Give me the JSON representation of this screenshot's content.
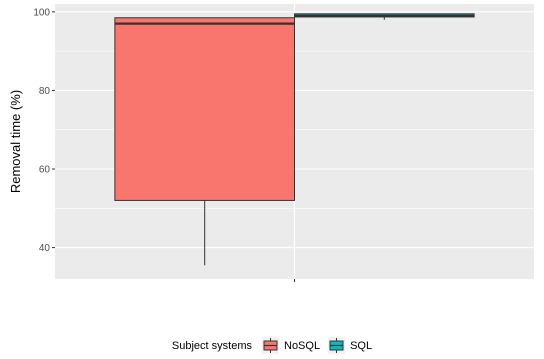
{
  "chart_data": {
    "type": "boxplot",
    "ylabel": "Removal time (%)",
    "xlabel": "",
    "ylim": [
      32,
      102
    ],
    "yticks": [
      40,
      60,
      80,
      100
    ],
    "grid": true,
    "legend_position": "bottom",
    "legend_title": "Subject systems",
    "groups": [
      {
        "name": "NoSQL",
        "color": "#F8766D",
        "min": 35.5,
        "q1": 52,
        "median": 97,
        "q3": 98.5,
        "max": 98.5
      },
      {
        "name": "SQL",
        "color": "#00BFC4",
        "min": 98,
        "q1": 98.7,
        "median": 99,
        "q3": 99.5,
        "max": 99.5
      }
    ]
  }
}
